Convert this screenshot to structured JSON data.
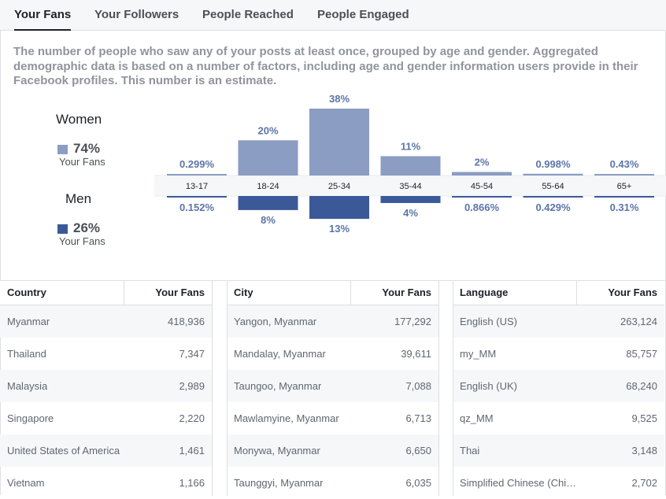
{
  "tabs": [
    {
      "label": "Your Fans",
      "active": true
    },
    {
      "label": "Your Followers",
      "active": false
    },
    {
      "label": "People Reached",
      "active": false
    },
    {
      "label": "People Engaged",
      "active": false
    }
  ],
  "description": "The number of people who saw any of your posts at least once, grouped by age and gender. Aggregated demographic data is based on a number of factors, including age and gender information users provide in their Facebook profiles. This number is an estimate.",
  "gender": {
    "women": {
      "title": "Women",
      "percent": "74%",
      "sub": "Your Fans",
      "color": "#8b9dc3"
    },
    "men": {
      "title": "Men",
      "percent": "26%",
      "sub": "Your Fans",
      "color": "#3b5998"
    }
  },
  "chart_data": {
    "type": "bar",
    "categories": [
      "13-17",
      "18-24",
      "25-34",
      "35-44",
      "45-54",
      "55-64",
      "65+"
    ],
    "series": [
      {
        "name": "Women",
        "values": [
          0.299,
          20,
          38,
          11,
          2,
          0.998,
          0.43
        ],
        "labels": [
          "0.299%",
          "20%",
          "38%",
          "11%",
          "2%",
          "0.998%",
          "0.43%"
        ],
        "color": "#8b9dc3"
      },
      {
        "name": "Men",
        "values": [
          0.152,
          8,
          13,
          4,
          0.866,
          0.429,
          0.31
        ],
        "labels": [
          "0.152%",
          "8%",
          "13%",
          "4%",
          "0.866%",
          "0.429%",
          "0.31%"
        ],
        "color": "#3b5998"
      }
    ]
  },
  "tables": {
    "country": {
      "header": "Country",
      "value_header": "Your Fans",
      "rows": [
        {
          "name": "Myanmar",
          "value": "418,936"
        },
        {
          "name": "Thailand",
          "value": "7,347"
        },
        {
          "name": "Malaysia",
          "value": "2,989"
        },
        {
          "name": "Singapore",
          "value": "2,220"
        },
        {
          "name": "United States of America",
          "value": "1,461"
        },
        {
          "name": "Vietnam",
          "value": "1,166"
        }
      ]
    },
    "city": {
      "header": "City",
      "value_header": "Your Fans",
      "rows": [
        {
          "name": "Yangon, Myanmar",
          "value": "177,292"
        },
        {
          "name": "Mandalay, Myanmar",
          "value": "39,611"
        },
        {
          "name": "Taungoo, Myanmar",
          "value": "7,088"
        },
        {
          "name": "Mawlamyine, Myanmar",
          "value": "6,713"
        },
        {
          "name": "Monywa, Myanmar",
          "value": "6,650"
        },
        {
          "name": "Taunggyi, Myanmar",
          "value": "6,035"
        }
      ]
    },
    "language": {
      "header": "Language",
      "value_header": "Your Fans",
      "rows": [
        {
          "name": "English (US)",
          "value": "263,124"
        },
        {
          "name": "my_MM",
          "value": "85,757"
        },
        {
          "name": "English (UK)",
          "value": "68,240"
        },
        {
          "name": "qz_MM",
          "value": "9,525"
        },
        {
          "name": "Thai",
          "value": "3,148"
        },
        {
          "name": "Simplified Chinese (Chi…",
          "value": "2,702"
        }
      ]
    }
  }
}
